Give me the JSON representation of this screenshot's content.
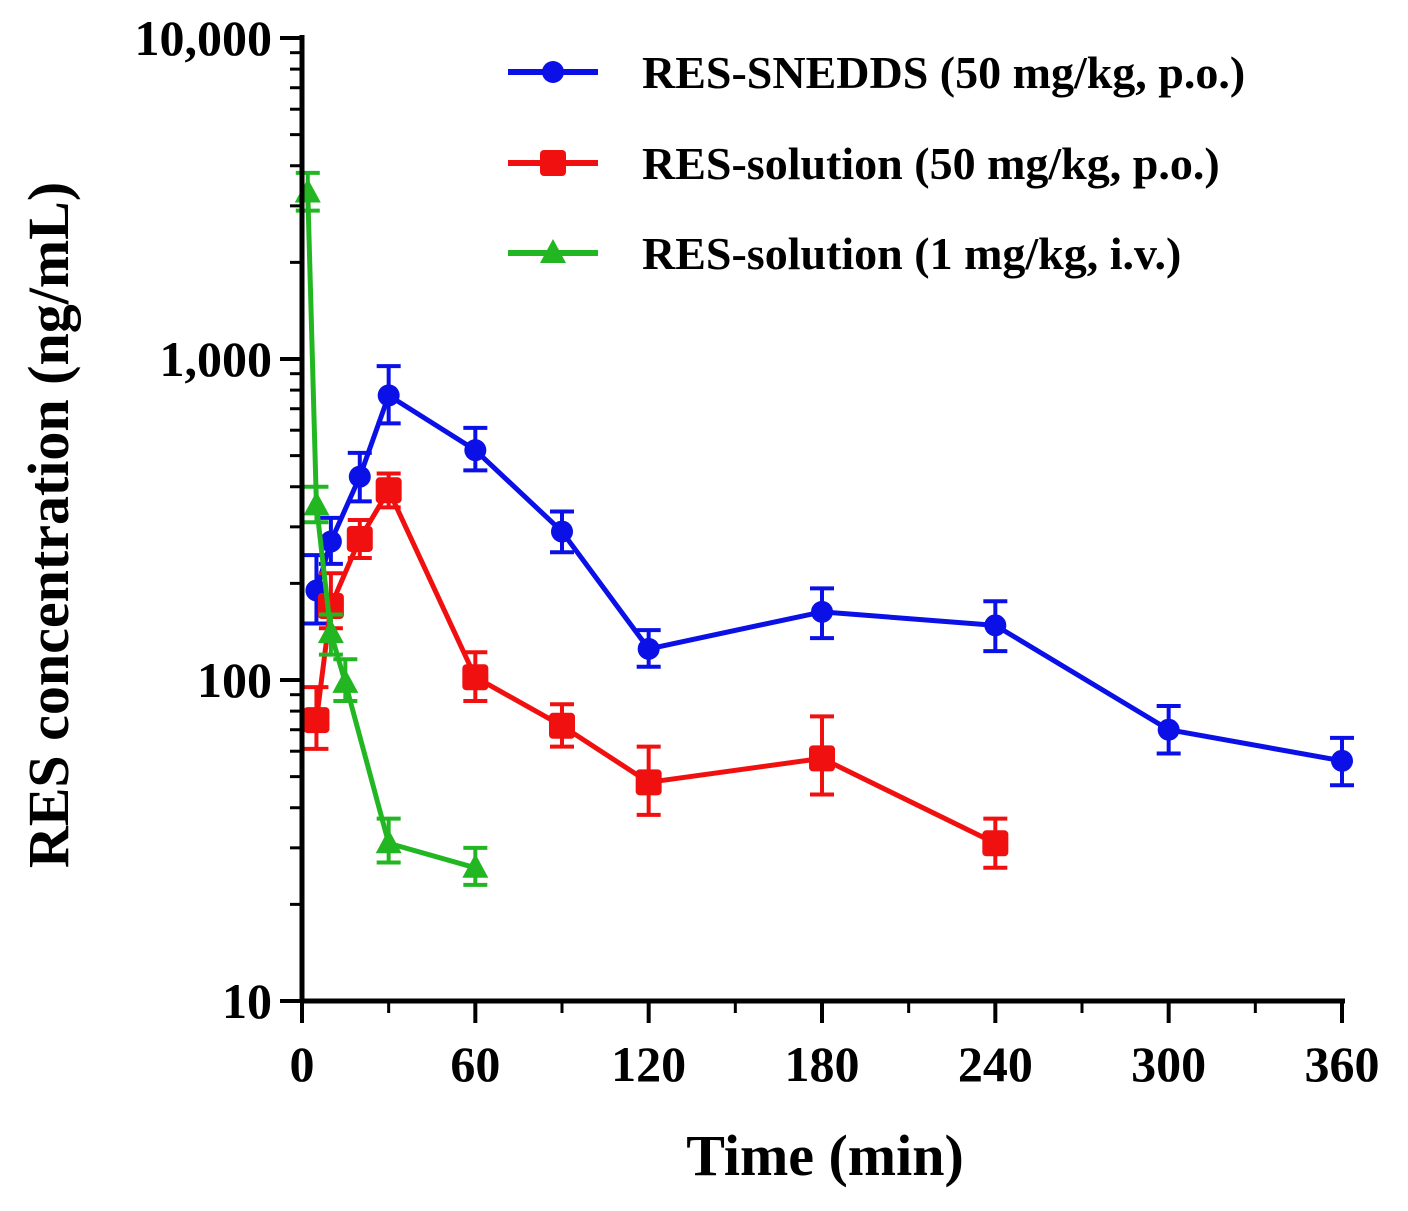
{
  "chart_data": {
    "type": "line",
    "title": "",
    "xlabel": "Time (min)",
    "ylabel": "RES concentration (ng/mL)",
    "xlim": [
      0,
      360
    ],
    "ylim": [
      10,
      10000
    ],
    "yscale": "log",
    "grid": false,
    "legend_position": "top-right",
    "x_ticks": [
      0,
      60,
      120,
      180,
      240,
      300,
      360
    ],
    "x_tick_labels": [
      "0",
      "60",
      "120",
      "180",
      "240",
      "300",
      "360"
    ],
    "y_ticks": [
      10,
      100,
      1000,
      10000
    ],
    "y_tick_labels": [
      "10",
      "100",
      "1,000",
      "10,000"
    ],
    "series": [
      {
        "name": "RES-SNEDDS (50 mg/kg, p.o.)",
        "color": "#0a10e6",
        "marker": "circle",
        "x": [
          5,
          10,
          20,
          30,
          60,
          90,
          120,
          180,
          240,
          300,
          360
        ],
        "y": [
          190,
          270,
          430,
          770,
          520,
          290,
          125,
          163,
          148,
          70,
          56
        ],
        "err_low": [
          40,
          40,
          70,
          140,
          70,
          40,
          15,
          28,
          25,
          11,
          9
        ],
        "err_high": [
          55,
          50,
          80,
          180,
          90,
          45,
          18,
          30,
          28,
          13,
          10
        ]
      },
      {
        "name": "RES-solution (50 mg/kg, p.o.)",
        "color": "#f01010",
        "marker": "square",
        "x": [
          5,
          10,
          20,
          30,
          60,
          90,
          120,
          180,
          240
        ],
        "y": [
          75,
          170,
          275,
          390,
          102,
          72,
          48,
          57,
          31
        ],
        "err_low": [
          14,
          25,
          35,
          45,
          16,
          10,
          10,
          13,
          5
        ],
        "err_high": [
          20,
          45,
          40,
          50,
          20,
          12,
          14,
          20,
          6
        ]
      },
      {
        "name": "RES-solution (1 mg/kg, i.v.)",
        "color": "#22b722",
        "marker": "triangle",
        "x": [
          2,
          5,
          10,
          15,
          30,
          60
        ],
        "y": [
          3300,
          350,
          140,
          98,
          31,
          26
        ],
        "err_low": [
          400,
          40,
          20,
          12,
          4,
          3
        ],
        "err_high": [
          500,
          50,
          20,
          18,
          6,
          4
        ]
      }
    ]
  }
}
